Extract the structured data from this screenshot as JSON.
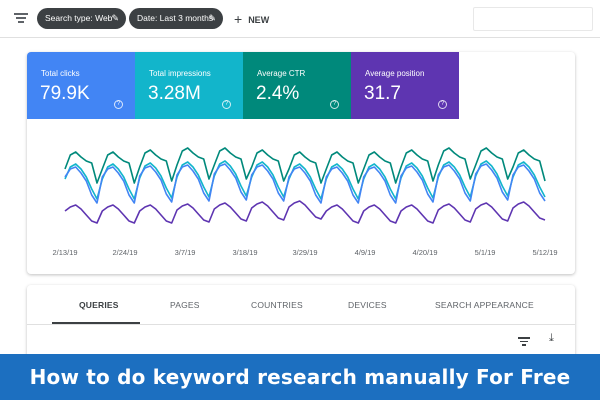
{
  "filters": {
    "chips": [
      {
        "label": "Search type: Web",
        "icon": "pencil-icon"
      },
      {
        "label": "Date: Last 3 months",
        "icon": "pencil-icon"
      }
    ],
    "new_label": "NEW"
  },
  "metrics": [
    {
      "label": "Total clicks",
      "value": "79.9K",
      "color": "#4285f4"
    },
    {
      "label": "Total impressions",
      "value": "3.28M",
      "color": "#12b5cb"
    },
    {
      "label": "Average CTR",
      "value": "2.4%",
      "color": "#00897b"
    },
    {
      "label": "Average position",
      "value": "31.7",
      "color": "#5e35b1"
    }
  ],
  "chart_data": {
    "type": "line",
    "x": [
      "2/13/19",
      "2/24/19",
      "3/7/19",
      "3/18/19",
      "3/29/19",
      "4/9/19",
      "4/20/19",
      "5/1/19",
      "5/12/19"
    ],
    "x_tick_labels": [
      "2/13/19",
      "2/24/19",
      "3/7/19",
      "3/18/19",
      "3/29/19",
      "4/9/19",
      "4/20/19",
      "5/1/19",
      "5/12/19"
    ],
    "grid": false,
    "legend": "none",
    "series": [
      {
        "color": "#00897b",
        "pattern": [
          58,
          72,
          75,
          70,
          66,
          64,
          44
        ],
        "trend": [
          0,
          0,
          2,
          4,
          4,
          2,
          0
        ]
      },
      {
        "color": "#12b5cb",
        "pattern": [
          48,
          60,
          63,
          58,
          50,
          38,
          28
        ],
        "trend": [
          0,
          0,
          1,
          2,
          3,
          2,
          0
        ]
      },
      {
        "color": "#4285f4",
        "pattern": [
          50,
          58,
          60,
          54,
          46,
          32,
          24
        ],
        "trend": [
          0,
          0,
          1,
          2,
          3,
          2,
          0
        ]
      },
      {
        "color": "#5e35b1",
        "pattern": [
          16,
          20,
          22,
          18,
          12,
          6,
          4
        ],
        "trend": [
          0,
          0,
          0,
          1,
          2,
          3,
          4
        ]
      }
    ]
  },
  "tabs": [
    {
      "label": "QUERIES",
      "active": true
    },
    {
      "label": "PAGES",
      "active": false
    },
    {
      "label": "COUNTRIES",
      "active": false
    },
    {
      "label": "DEVICES",
      "active": false
    },
    {
      "label": "SEARCH APPEARANCE",
      "active": false
    }
  ],
  "table_icons": [
    "filter-icon",
    "download-icon"
  ],
  "banner": {
    "text": "How to do keyword research manually For Free",
    "color": "#1c6fc0"
  }
}
